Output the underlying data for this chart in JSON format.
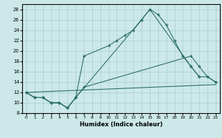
{
  "xlabel": "Humidex (Indice chaleur)",
  "bg_color": "#cce8e8",
  "grid_color": "#aacccc",
  "line_color": "#2a6e60",
  "xlim": [
    -0.5,
    23.5
  ],
  "ylim": [
    8,
    29
  ],
  "xticks": [
    0,
    1,
    2,
    3,
    4,
    5,
    6,
    7,
    8,
    9,
    10,
    11,
    12,
    13,
    14,
    15,
    16,
    17,
    18,
    19,
    20,
    21,
    22,
    23
  ],
  "yticks": [
    8,
    10,
    12,
    14,
    16,
    18,
    20,
    22,
    24,
    26,
    28
  ],
  "curve1_x": [
    0,
    1,
    2,
    3,
    4,
    5,
    6,
    7,
    10,
    11,
    12,
    13,
    14,
    15,
    16,
    17,
    18,
    19,
    20,
    21
  ],
  "curve1_y": [
    12,
    11,
    11,
    10,
    10,
    9,
    11,
    19,
    21,
    22,
    23,
    24,
    26,
    28,
    27,
    25,
    22,
    19,
    17,
    15
  ],
  "curve2_x": [
    0,
    1,
    2,
    3,
    4,
    5,
    6,
    7,
    20,
    21,
    22,
    23
  ],
  "curve2_y": [
    12,
    11,
    11,
    10,
    10,
    9,
    11,
    13,
    19,
    17,
    15,
    14
  ],
  "curve3_x": [
    0,
    1,
    2,
    3,
    4,
    5,
    6,
    14,
    15,
    20,
    21,
    22,
    23
  ],
  "curve3_y": [
    12,
    11,
    11,
    10,
    10,
    9,
    11,
    26,
    28,
    17,
    15,
    15,
    14
  ],
  "line4_x": [
    0,
    23
  ],
  "line4_y": [
    12,
    13.5
  ]
}
